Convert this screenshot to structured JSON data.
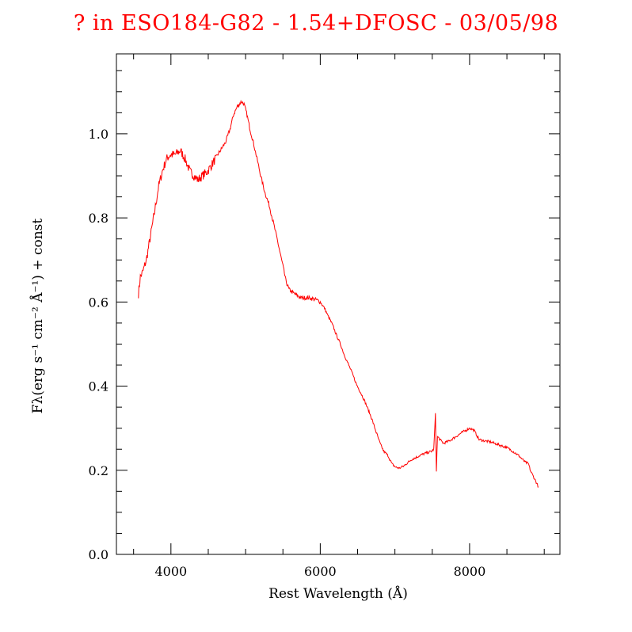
{
  "chart_data": {
    "type": "line",
    "title": "? in ESO184-G82 - 1.54+DFOSC - 03/05/98",
    "xlabel": "Rest Wavelength (Å)",
    "ylabel": "Fλ(erg s⁻¹ cm⁻² Å⁻¹) + const",
    "xlim": [
      3270,
      9210
    ],
    "ylim": [
      0,
      1.19
    ],
    "xticks": [
      4000,
      6000,
      8000
    ],
    "xtick_labels": [
      "4000",
      "6000",
      "8000"
    ],
    "x_minor_step": 500,
    "yticks": [
      0.0,
      0.2,
      0.4,
      0.6,
      0.8,
      1.0
    ],
    "ytick_labels": [
      "0.0",
      "0.2",
      "0.4",
      "0.6",
      "0.8",
      "1.0"
    ],
    "y_minor_step": 0.05,
    "grid": false,
    "line_color": "#ff0000",
    "title_color": "#ff0000",
    "series": [
      {
        "x": [
          3565,
          3590,
          3620,
          3671,
          3720,
          3777,
          3830,
          3883,
          3940,
          3989,
          4050,
          4127,
          4190,
          4255,
          4310,
          4361,
          4420,
          4488,
          4560,
          4626,
          4680,
          4732,
          4790,
          4838,
          4890,
          4944,
          4980,
          5019,
          5060,
          5103,
          5160,
          5209,
          5260,
          5316,
          5370,
          5422,
          5470,
          5507,
          5540,
          5581,
          5650,
          5740,
          5850,
          5952,
          6000,
          6058,
          6110,
          6164,
          6220,
          6270,
          6320,
          6377,
          6430,
          6483,
          6540,
          6589,
          6640,
          6695,
          6750,
          6801,
          6850,
          6907,
          6960,
          7013,
          7060,
          7119,
          7170,
          7225,
          7280,
          7331,
          7400,
          7490,
          7520,
          7543,
          7555,
          7570,
          7649,
          7730,
          7809,
          7900,
          8000,
          8060,
          8127,
          8200,
          8286,
          8400,
          8498,
          8580,
          8657,
          8740,
          8790,
          8817,
          8870,
          8923
        ],
        "y": [
          0.62,
          0.66,
          0.67,
          0.7,
          0.75,
          0.81,
          0.87,
          0.91,
          0.94,
          0.95,
          0.95,
          0.96,
          0.94,
          0.91,
          0.9,
          0.89,
          0.9,
          0.91,
          0.93,
          0.95,
          0.965,
          0.98,
          1.01,
          1.045,
          1.065,
          1.077,
          1.07,
          1.045,
          1.01,
          0.98,
          0.935,
          0.895,
          0.86,
          0.83,
          0.79,
          0.75,
          0.71,
          0.68,
          0.65,
          0.63,
          0.62,
          0.61,
          0.61,
          0.605,
          0.6,
          0.585,
          0.565,
          0.546,
          0.52,
          0.5,
          0.475,
          0.452,
          0.43,
          0.405,
          0.385,
          0.367,
          0.345,
          0.32,
          0.29,
          0.264,
          0.245,
          0.235,
          0.215,
          0.207,
          0.205,
          0.21,
          0.218,
          0.226,
          0.23,
          0.235,
          0.24,
          0.245,
          0.25,
          0.333,
          0.2,
          0.28,
          0.264,
          0.27,
          0.279,
          0.29,
          0.3,
          0.295,
          0.273,
          0.27,
          0.267,
          0.26,
          0.254,
          0.245,
          0.235,
          0.22,
          0.215,
          0.198,
          0.18,
          0.16
        ]
      }
    ]
  }
}
